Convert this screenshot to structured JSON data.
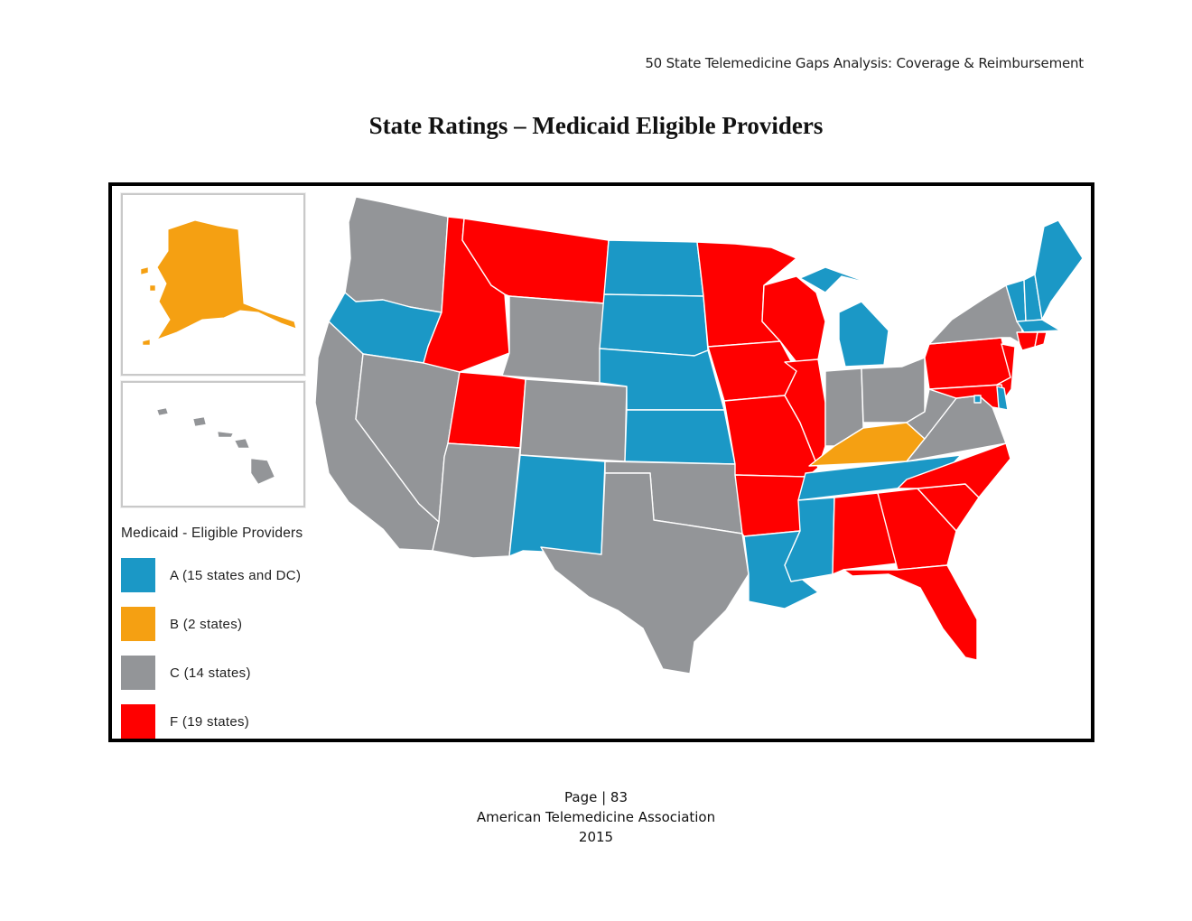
{
  "header": {
    "running_title": "50 State Telemedicine Gaps Analysis:  Coverage & Reimbursement",
    "title": "State Ratings – Medicaid Eligible Providers"
  },
  "colors": {
    "A": "#1b98c6",
    "B": "#f5a012",
    "C": "#939598",
    "F": "#ff0000",
    "border": "#ffffff"
  },
  "legend": {
    "title": "Medicaid - Eligible Providers",
    "items": [
      {
        "grade": "A",
        "label": "A (15 states and DC)"
      },
      {
        "grade": "B",
        "label": "B (2 states)"
      },
      {
        "grade": "C",
        "label": "C (14 states)"
      },
      {
        "grade": "F",
        "label": "F (19 states)"
      }
    ]
  },
  "state_grades": {
    "AK": "B",
    "HI": "C",
    "WA": "C",
    "OR": "A",
    "CA": "C",
    "NV": "C",
    "ID": "F",
    "MT": "F",
    "WY": "C",
    "UT": "F",
    "CO": "C",
    "AZ": "C",
    "NM": "A",
    "ND": "A",
    "SD": "A",
    "NE": "A",
    "KS": "A",
    "OK": "C",
    "TX": "C",
    "MN": "F",
    "IA": "F",
    "MO": "F",
    "AR": "F",
    "LA": "A",
    "WI": "F",
    "IL": "F",
    "MI": "A",
    "IN": "C",
    "OH": "C",
    "KY": "B",
    "TN": "A",
    "MS": "A",
    "AL": "F",
    "GA": "F",
    "FL": "F",
    "SC": "F",
    "NC": "F",
    "VA": "C",
    "WV": "C",
    "PA": "F",
    "NY": "C",
    "VT": "A",
    "NH": "A",
    "ME": "A",
    "MA": "A",
    "RI": "F",
    "CT": "F",
    "NJ": "F",
    "DE": "A",
    "MD": "F",
    "DC": "A"
  },
  "footer": {
    "page": "Page | 83",
    "org": "American Telemedicine Association",
    "year": "2015"
  }
}
